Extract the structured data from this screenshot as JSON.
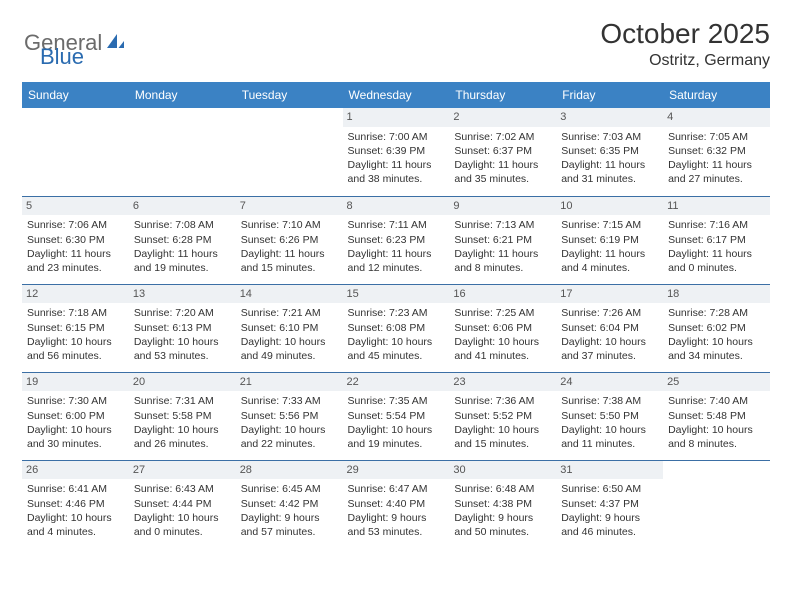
{
  "brand": {
    "part1": "General",
    "part2": "Blue"
  },
  "title": "October 2025",
  "location": "Ostritz, Germany",
  "colors": {
    "header_bg": "#3b82c4",
    "header_text": "#ffffff",
    "daynum_bg": "#eef1f4",
    "cell_border": "#3b6fa5",
    "body_text": "#333333",
    "logo_gray": "#6b6b6b",
    "logo_blue": "#2a6bb0"
  },
  "day_names": [
    "Sunday",
    "Monday",
    "Tuesday",
    "Wednesday",
    "Thursday",
    "Friday",
    "Saturday"
  ],
  "weeks": [
    [
      null,
      null,
      null,
      {
        "n": "1",
        "sr": "7:00 AM",
        "ss": "6:39 PM",
        "dl": "11 hours and 38 minutes."
      },
      {
        "n": "2",
        "sr": "7:02 AM",
        "ss": "6:37 PM",
        "dl": "11 hours and 35 minutes."
      },
      {
        "n": "3",
        "sr": "7:03 AM",
        "ss": "6:35 PM",
        "dl": "11 hours and 31 minutes."
      },
      {
        "n": "4",
        "sr": "7:05 AM",
        "ss": "6:32 PM",
        "dl": "11 hours and 27 minutes."
      }
    ],
    [
      {
        "n": "5",
        "sr": "7:06 AM",
        "ss": "6:30 PM",
        "dl": "11 hours and 23 minutes."
      },
      {
        "n": "6",
        "sr": "7:08 AM",
        "ss": "6:28 PM",
        "dl": "11 hours and 19 minutes."
      },
      {
        "n": "7",
        "sr": "7:10 AM",
        "ss": "6:26 PM",
        "dl": "11 hours and 15 minutes."
      },
      {
        "n": "8",
        "sr": "7:11 AM",
        "ss": "6:23 PM",
        "dl": "11 hours and 12 minutes."
      },
      {
        "n": "9",
        "sr": "7:13 AM",
        "ss": "6:21 PM",
        "dl": "11 hours and 8 minutes."
      },
      {
        "n": "10",
        "sr": "7:15 AM",
        "ss": "6:19 PM",
        "dl": "11 hours and 4 minutes."
      },
      {
        "n": "11",
        "sr": "7:16 AM",
        "ss": "6:17 PM",
        "dl": "11 hours and 0 minutes."
      }
    ],
    [
      {
        "n": "12",
        "sr": "7:18 AM",
        "ss": "6:15 PM",
        "dl": "10 hours and 56 minutes."
      },
      {
        "n": "13",
        "sr": "7:20 AM",
        "ss": "6:13 PM",
        "dl": "10 hours and 53 minutes."
      },
      {
        "n": "14",
        "sr": "7:21 AM",
        "ss": "6:10 PM",
        "dl": "10 hours and 49 minutes."
      },
      {
        "n": "15",
        "sr": "7:23 AM",
        "ss": "6:08 PM",
        "dl": "10 hours and 45 minutes."
      },
      {
        "n": "16",
        "sr": "7:25 AM",
        "ss": "6:06 PM",
        "dl": "10 hours and 41 minutes."
      },
      {
        "n": "17",
        "sr": "7:26 AM",
        "ss": "6:04 PM",
        "dl": "10 hours and 37 minutes."
      },
      {
        "n": "18",
        "sr": "7:28 AM",
        "ss": "6:02 PM",
        "dl": "10 hours and 34 minutes."
      }
    ],
    [
      {
        "n": "19",
        "sr": "7:30 AM",
        "ss": "6:00 PM",
        "dl": "10 hours and 30 minutes."
      },
      {
        "n": "20",
        "sr": "7:31 AM",
        "ss": "5:58 PM",
        "dl": "10 hours and 26 minutes."
      },
      {
        "n": "21",
        "sr": "7:33 AM",
        "ss": "5:56 PM",
        "dl": "10 hours and 22 minutes."
      },
      {
        "n": "22",
        "sr": "7:35 AM",
        "ss": "5:54 PM",
        "dl": "10 hours and 19 minutes."
      },
      {
        "n": "23",
        "sr": "7:36 AM",
        "ss": "5:52 PM",
        "dl": "10 hours and 15 minutes."
      },
      {
        "n": "24",
        "sr": "7:38 AM",
        "ss": "5:50 PM",
        "dl": "10 hours and 11 minutes."
      },
      {
        "n": "25",
        "sr": "7:40 AM",
        "ss": "5:48 PM",
        "dl": "10 hours and 8 minutes."
      }
    ],
    [
      {
        "n": "26",
        "sr": "6:41 AM",
        "ss": "4:46 PM",
        "dl": "10 hours and 4 minutes."
      },
      {
        "n": "27",
        "sr": "6:43 AM",
        "ss": "4:44 PM",
        "dl": "10 hours and 0 minutes."
      },
      {
        "n": "28",
        "sr": "6:45 AM",
        "ss": "4:42 PM",
        "dl": "9 hours and 57 minutes."
      },
      {
        "n": "29",
        "sr": "6:47 AM",
        "ss": "4:40 PM",
        "dl": "9 hours and 53 minutes."
      },
      {
        "n": "30",
        "sr": "6:48 AM",
        "ss": "4:38 PM",
        "dl": "9 hours and 50 minutes."
      },
      {
        "n": "31",
        "sr": "6:50 AM",
        "ss": "4:37 PM",
        "dl": "9 hours and 46 minutes."
      },
      null
    ]
  ],
  "labels": {
    "sunrise": "Sunrise:",
    "sunset": "Sunset:",
    "daylight": "Daylight:"
  }
}
